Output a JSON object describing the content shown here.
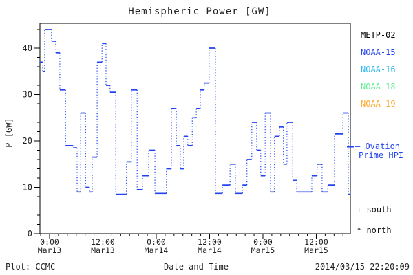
{
  "title": "Hemispheric Power [GW]",
  "footer": {
    "plot_credit": "Plot: CCMC",
    "xlabel": "Date and Time",
    "timestamp": "2014/03/15 22:20:09"
  },
  "axes": {
    "ylabel": "P [GW]",
    "y_major_ticks": [
      0,
      10,
      20,
      30,
      40
    ],
    "x_tick_labels": [
      {
        "time": "0:00",
        "date": "Mar13"
      },
      {
        "time": "12:00",
        "date": "Mar13"
      },
      {
        "time": "0:00",
        "date": "Mar14"
      },
      {
        "time": "12:00",
        "date": "Mar14"
      },
      {
        "time": "0:00",
        "date": "Mar15"
      },
      {
        "time": "12:00",
        "date": "Mar15"
      }
    ]
  },
  "legend": {
    "satellites": [
      {
        "label": "METP-02",
        "color": "#000000"
      },
      {
        "label": "NOAA-15",
        "color": "#2244ee"
      },
      {
        "label": "NOAA-16",
        "color": "#33bbee"
      },
      {
        "label": "NOAA-18",
        "color": "#66ee99"
      },
      {
        "label": "NOAA-19",
        "color": "#ffaa33"
      }
    ],
    "ovation": {
      "label_line1": "Ovation",
      "label_line2": "Prime HPI",
      "value_gw": 18.7,
      "color": "#2244ee"
    },
    "markers": [
      {
        "symbol": "+",
        "label": "south"
      },
      {
        "symbol": "*",
        "label": "north"
      }
    ]
  },
  "chart_data": {
    "type": "line",
    "style": "step",
    "title": "Hemispheric Power [GW]",
    "xlabel": "Date and Time",
    "ylabel": "P [GW]",
    "x_unit": "hours since 2014-03-13 00:00 UT",
    "xlim": [
      -2.17,
      67.7
    ],
    "ylim": [
      0,
      45.3
    ],
    "grid": false,
    "x_major_ticks_hours": [
      0,
      12,
      24,
      36,
      48,
      60
    ],
    "x_minor_tick_step_hours": 2,
    "y_minor_tick_step": 2,
    "legend_position": "right-outside",
    "series": [
      {
        "name": "Ovation Prime HPI",
        "color": "#2244ee",
        "points_h_gw": [
          [
            -2.17,
            37
          ],
          [
            -1.55,
            35
          ],
          [
            -1.1,
            44
          ],
          [
            0.45,
            41.5
          ],
          [
            1.4,
            39
          ],
          [
            2.3,
            31
          ],
          [
            3.6,
            19
          ],
          [
            5.3,
            18.5
          ],
          [
            6.2,
            9
          ],
          [
            7.0,
            26
          ],
          [
            8.1,
            10
          ],
          [
            9.0,
            9
          ],
          [
            9.6,
            16.5
          ],
          [
            10.7,
            37
          ],
          [
            11.8,
            41
          ],
          [
            12.7,
            32
          ],
          [
            13.6,
            30.5
          ],
          [
            14.9,
            8.5
          ],
          [
            17.3,
            15.5
          ],
          [
            18.4,
            31
          ],
          [
            19.7,
            9.5
          ],
          [
            20.9,
            12.5
          ],
          [
            22.3,
            18
          ],
          [
            23.7,
            8.7
          ],
          [
            26.3,
            14
          ],
          [
            27.4,
            27
          ],
          [
            28.5,
            19
          ],
          [
            29.4,
            14
          ],
          [
            30.2,
            21
          ],
          [
            31.1,
            19
          ],
          [
            32.1,
            25
          ],
          [
            33.0,
            27
          ],
          [
            33.9,
            31
          ],
          [
            34.8,
            32.5
          ],
          [
            35.9,
            40
          ],
          [
            37.3,
            8.7
          ],
          [
            38.9,
            10.5
          ],
          [
            40.6,
            15
          ],
          [
            41.8,
            8.7
          ],
          [
            43.4,
            10.5
          ],
          [
            44.4,
            16
          ],
          [
            45.5,
            24
          ],
          [
            46.6,
            18
          ],
          [
            47.5,
            12.5
          ],
          [
            48.5,
            26
          ],
          [
            49.7,
            9
          ],
          [
            50.6,
            21
          ],
          [
            51.7,
            23
          ],
          [
            52.6,
            15
          ],
          [
            53.4,
            24
          ],
          [
            54.7,
            11.5
          ],
          [
            55.6,
            9
          ],
          [
            59.0,
            12.5
          ],
          [
            60.2,
            15
          ],
          [
            61.3,
            9
          ],
          [
            62.6,
            10.5
          ],
          [
            64.1,
            21.5
          ],
          [
            66.0,
            26
          ],
          [
            67.2,
            8.5
          ],
          [
            67.7,
            8.5
          ]
        ]
      }
    ]
  }
}
